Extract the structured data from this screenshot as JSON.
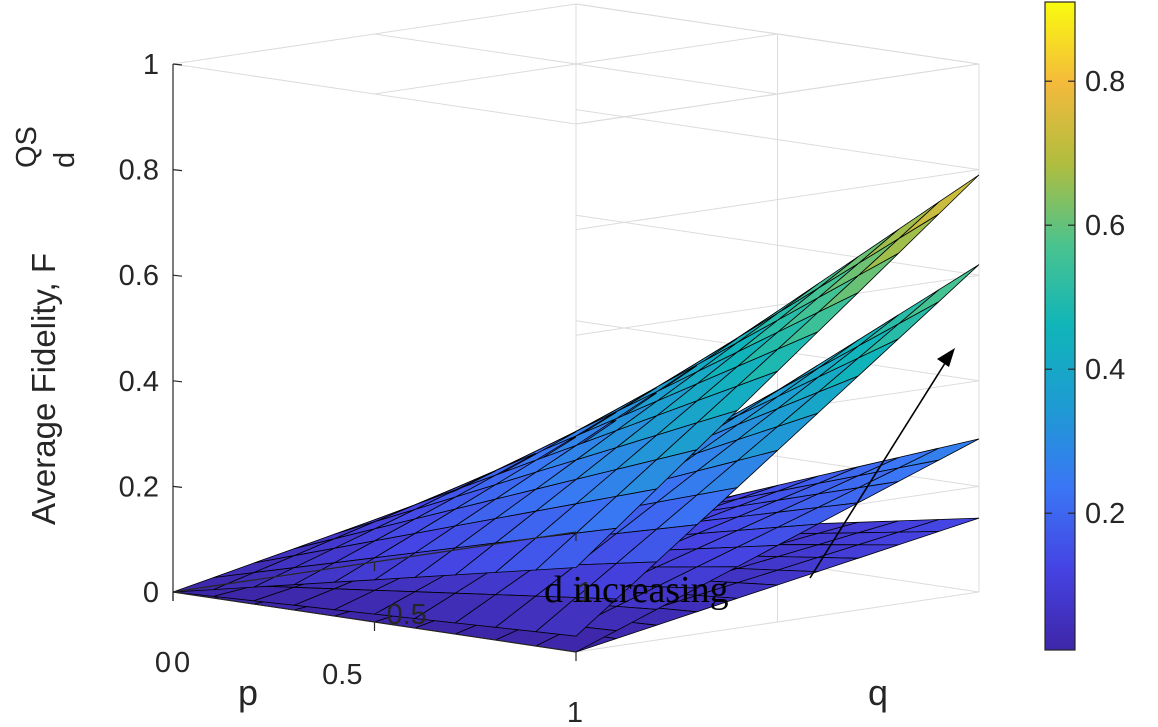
{
  "chart_data": {
    "type": "surface",
    "title": "",
    "ylabel": "Average Fidelity, F",
    "ylabel_super": "QS",
    "ylabel_sub": "d",
    "x_axis_label": "p",
    "z_axis_label": "q",
    "yticks": [
      0,
      0.2,
      0.4,
      0.6,
      0.8,
      1
    ],
    "ytick_labels": [
      "0",
      "0.2",
      "0.4",
      "0.6",
      "0.8",
      "1"
    ],
    "p_ticks": [
      "0",
      "0.5",
      "1"
    ],
    "q_ticks": [
      "0",
      "0.5",
      "1"
    ],
    "zlim": [
      0,
      1
    ],
    "grid": true,
    "colormap": "parula",
    "colorbar": {
      "range": [
        0.01,
        0.91
      ],
      "ticks": [
        0.2,
        0.4,
        0.6,
        0.8
      ],
      "tick_labels": [
        "0.2",
        "0.4",
        "0.6",
        "0.8"
      ],
      "placement": "right"
    },
    "annotation": "d increasing",
    "series": [
      {
        "peak_at_p1_q1": 0.79,
        "value_at_p0_q0": 0.0,
        "value_at_p0_q1": 0.16
      },
      {
        "peak_at_p1_q1": 0.62,
        "value_at_p0_q0": 0.0,
        "value_at_p0_q1": 0.03
      },
      {
        "peak_at_p1_q1": 0.29,
        "value_at_p0_q0": 0.0,
        "value_at_p0_q1": 0.0
      },
      {
        "peak_at_p1_q1": 0.14,
        "value_at_p0_q0": 0.0,
        "value_at_p0_q1": 0.0
      }
    ]
  },
  "colors": {
    "axis": "#262626",
    "grid": "#dcdcdc",
    "edge": "#000000"
  }
}
